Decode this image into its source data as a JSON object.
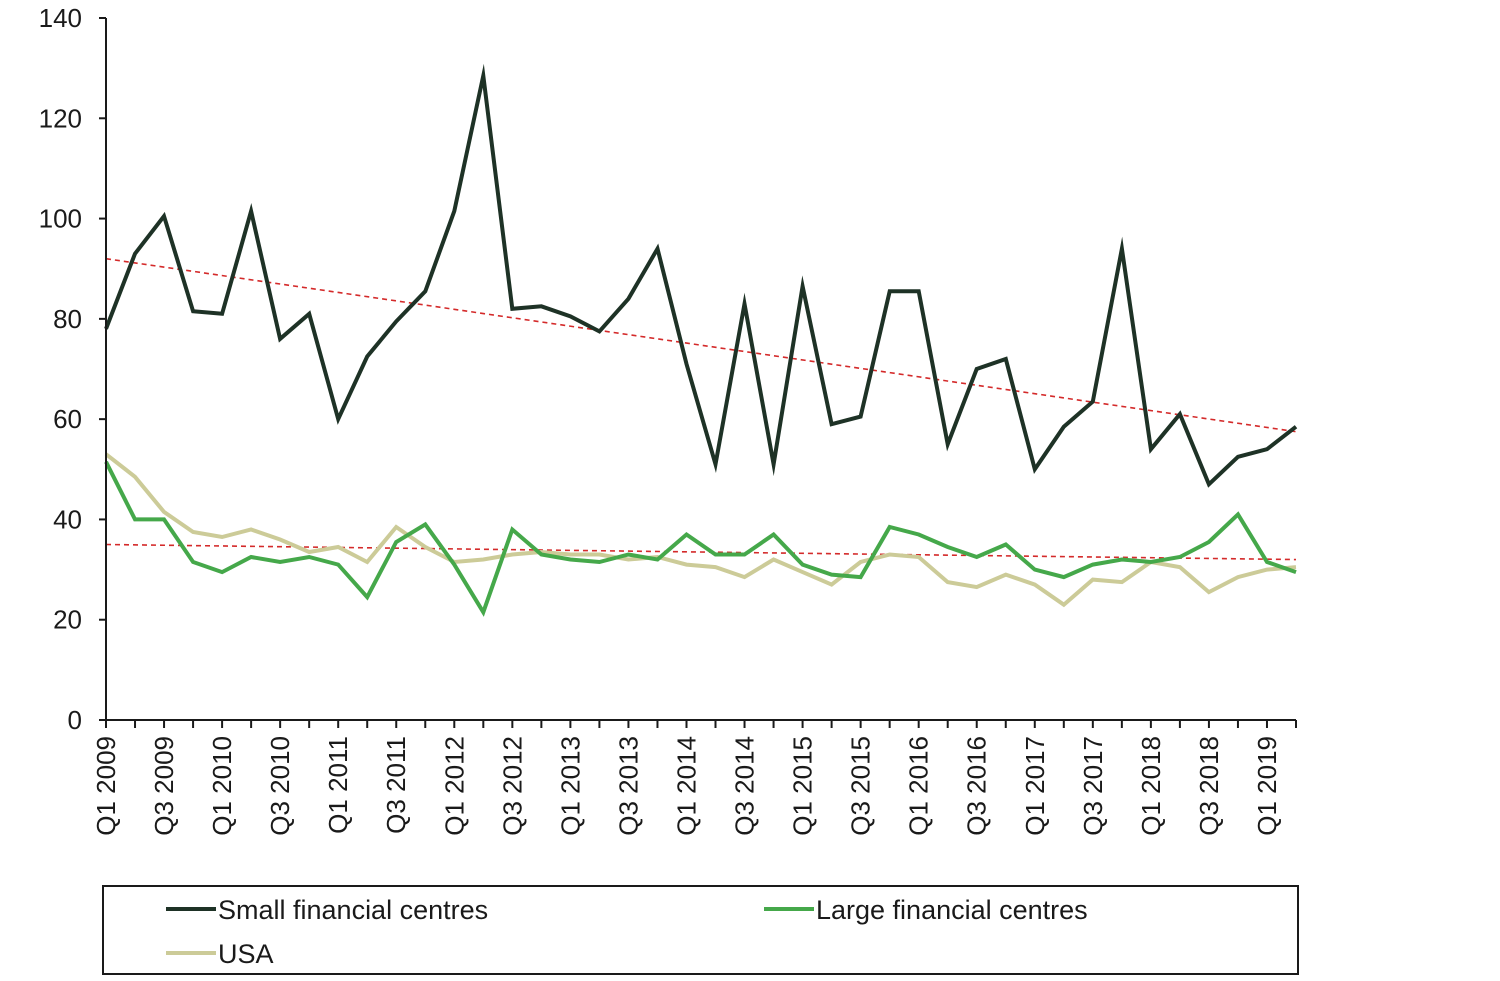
{
  "chart_data": {
    "type": "line",
    "ylim": [
      0,
      140
    ],
    "y_ticks": [
      0,
      20,
      40,
      60,
      80,
      100,
      120,
      140
    ],
    "x": [
      "Q1 2009",
      "Q2 2009",
      "Q3 2009",
      "Q4 2009",
      "Q1 2010",
      "Q2 2010",
      "Q3 2010",
      "Q4 2010",
      "Q1 2011",
      "Q2 2011",
      "Q3 2011",
      "Q4 2011",
      "Q1 2012",
      "Q2 2012",
      "Q3 2012",
      "Q4 2012",
      "Q1 2013",
      "Q2 2013",
      "Q3 2013",
      "Q4 2013",
      "Q1 2014",
      "Q2 2014",
      "Q3 2014",
      "Q4 2014",
      "Q1 2015",
      "Q2 2015",
      "Q3 2015",
      "Q4 2015",
      "Q1 2016",
      "Q2 2016",
      "Q3 2016",
      "Q4 2016",
      "Q1 2017",
      "Q2 2017",
      "Q3 2017",
      "Q4 2017",
      "Q1 2018",
      "Q2 2018",
      "Q3 2018",
      "Q4 2018",
      "Q1 2019",
      "Q2 2019"
    ],
    "x_tick_labels": [
      "Q1 2009",
      "Q3 2009",
      "Q1 2010",
      "Q3 2010",
      "Q1 2011",
      "Q3 2011",
      "Q1 2012",
      "Q3 2012",
      "Q1 2013",
      "Q3 2013",
      "Q1 2014",
      "Q3 2014",
      "Q1 2015",
      "Q3 2015",
      "Q1 2016",
      "Q3 2016",
      "Q1 2017",
      "Q3 2017",
      "Q1 2018",
      "Q3 2018",
      "Q1 2019"
    ],
    "series": [
      {
        "name": "Small financial centres",
        "color": "#1e3226",
        "values": [
          78,
          93,
          100.5,
          81.5,
          81,
          101.5,
          76,
          81,
          60,
          72.5,
          79.5,
          85.5,
          101.5,
          128.5,
          82,
          82.5,
          80.5,
          77.5,
          84,
          94,
          71,
          51,
          83,
          51,
          86.5,
          59,
          60.5,
          85.5,
          85.5,
          55,
          70,
          72,
          50,
          58.5,
          63.5,
          94,
          54,
          61,
          47,
          52.5,
          54,
          58.5
        ]
      },
      {
        "name": "Large financial centres",
        "color": "#45a84a",
        "values": [
          51.5,
          40,
          40,
          31.5,
          29.5,
          32.5,
          31.5,
          32.5,
          31,
          24.5,
          35.5,
          39,
          31,
          21.5,
          38,
          33,
          32,
          31.5,
          33,
          32,
          37,
          33,
          33,
          37,
          31,
          29,
          28.5,
          38.5,
          37,
          34.5,
          32.5,
          35,
          30,
          28.5,
          31,
          32,
          31.5,
          32.5,
          35.5,
          41,
          31.5,
          29.5
        ]
      },
      {
        "name": "USA",
        "color": "#cccb98",
        "values": [
          53,
          48.5,
          41.5,
          37.5,
          36.5,
          38,
          36,
          33.5,
          34.5,
          31.5,
          38.5,
          34.5,
          31.5,
          32,
          33,
          33.5,
          33,
          33,
          32,
          32.5,
          31,
          30.5,
          28.5,
          32,
          29.5,
          27,
          31.5,
          33,
          32.5,
          27.5,
          26.5,
          29,
          27,
          23,
          28,
          27.5,
          31.5,
          30.5,
          25.5,
          28.5,
          30,
          30.5
        ]
      }
    ],
    "trendlines": [
      {
        "series": "Small financial centres",
        "start": 92,
        "end": 57.5,
        "color": "#d42a2a"
      },
      {
        "series": "Large financial centres",
        "start": 35,
        "end": 32,
        "color": "#d42a2a"
      }
    ],
    "legend_position": "bottom"
  }
}
